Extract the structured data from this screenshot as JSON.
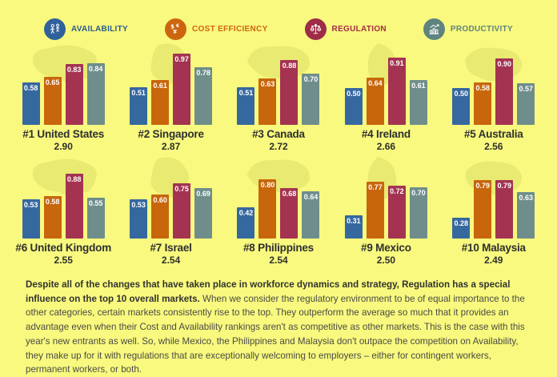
{
  "page": {
    "background": "#f8f97e",
    "map_silhouette_color": "#e9ea72",
    "text_color": "#2f2f2f"
  },
  "legend": {
    "items": [
      {
        "label": "AVAILABILITY",
        "icon": "people-icon",
        "circle_color": "#30619a",
        "text_color": "#2d5c90"
      },
      {
        "label": "COST EFFICIENCY",
        "icon": "currency-icon",
        "circle_color": "#cd650f",
        "text_color": "#d2650e"
      },
      {
        "label": "REGULATION",
        "icon": "scales-icon",
        "circle_color": "#9e2c47",
        "text_color": "#a72b47"
      },
      {
        "label": "PRODUCTIVITY",
        "icon": "growth-chart-icon",
        "circle_color": "#5f837f",
        "text_color": "#5f837f"
      }
    ]
  },
  "chart_data": {
    "type": "bar",
    "categories": [
      "Availability",
      "Cost Efficiency",
      "Regulation",
      "Productivity"
    ],
    "series_colors": [
      "#3668a0",
      "#c8660c",
      "#a43351",
      "#6f8e8b"
    ],
    "ylim": [
      0,
      1
    ],
    "value_label_format": "0.00",
    "markets": [
      {
        "rank": "#1",
        "name": "United States",
        "total": "2.90",
        "values": [
          0.58,
          0.65,
          0.83,
          0.84
        ]
      },
      {
        "rank": "#2",
        "name": "Singapore",
        "total": "2.87",
        "values": [
          0.51,
          0.61,
          0.97,
          0.78
        ]
      },
      {
        "rank": "#3",
        "name": "Canada",
        "total": "2.72",
        "values": [
          0.51,
          0.63,
          0.88,
          0.7
        ]
      },
      {
        "rank": "#4",
        "name": "Ireland",
        "total": "2.66",
        "values": [
          0.5,
          0.64,
          0.91,
          0.61
        ]
      },
      {
        "rank": "#5",
        "name": "Australia",
        "total": "2.56",
        "values": [
          0.5,
          0.58,
          0.9,
          0.57
        ]
      },
      {
        "rank": "#6",
        "name": "United Kingdom",
        "total": "2.55",
        "values": [
          0.53,
          0.58,
          0.88,
          0.55
        ]
      },
      {
        "rank": "#7",
        "name": "Israel",
        "total": "2.54",
        "values": [
          0.53,
          0.6,
          0.75,
          0.69
        ]
      },
      {
        "rank": "#8",
        "name": "Philippines",
        "total": "2.54",
        "values": [
          0.42,
          0.8,
          0.68,
          0.64
        ]
      },
      {
        "rank": "#9",
        "name": "Mexico",
        "total": "2.50",
        "values": [
          0.31,
          0.77,
          0.72,
          0.7
        ]
      },
      {
        "rank": "#10",
        "name": "Malaysia",
        "total": "2.49",
        "values": [
          0.28,
          0.79,
          0.79,
          0.63
        ]
      }
    ]
  },
  "commentary": {
    "bold": "Despite all of the changes that have taken place in workforce dynamics and strategy, Regulation has a special influence on the top 10 overall markets.",
    "text": " When we consider the regulatory environment to be of equal importance to the other categories, certain markets consistently rise to the top. They outperform the average so much that it provides an advantage even when their Cost and Availability rankings aren't as competitive as other markets. This is the case with this year's new entrants as well. So, while Mexico, the Philippines and Malaysia don't outpace the competition on Availability, they make up for it with regulations that are exceptionally welcoming to employers – either for contingent workers, permanent workers, or both."
  }
}
